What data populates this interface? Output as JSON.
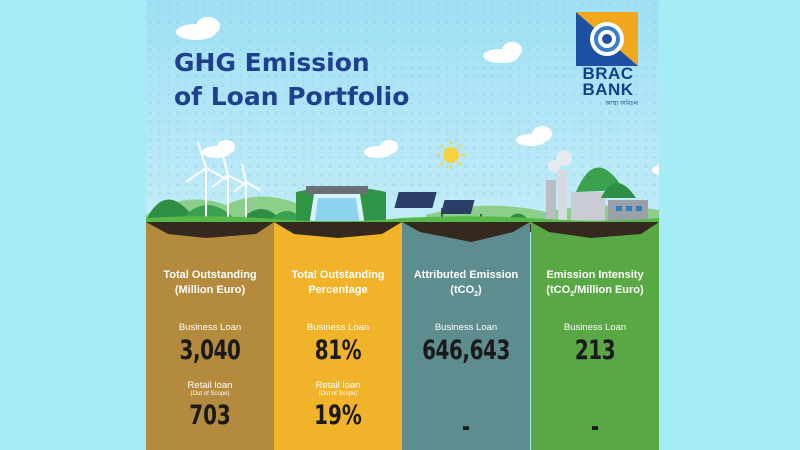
{
  "title": {
    "line1": "GHG Emission",
    "line2": "of Loan Portfolio"
  },
  "logo": {
    "line1": "BRAC",
    "line2": "BANK",
    "tagline": "আস্থা অবিচল"
  },
  "colors": {
    "title": "#1f3f8f",
    "panel1": "#b48a3c",
    "panel2": "#f0b329",
    "panel3": "#5e8d90",
    "panel4": "#5aa845"
  },
  "panels": [
    {
      "header_line1": "Total Outstanding",
      "header_line2": "(Million Euro)",
      "business_label": "Business Loan",
      "business_value": "3,040",
      "retail_label": "Retail loan",
      "retail_note": "(Out of Scope)",
      "retail_value": "703"
    },
    {
      "header_line1": "Total Outstanding",
      "header_line2": "Percentage",
      "business_label": "Business Loan",
      "business_value": "81%",
      "retail_label": "Retail loan",
      "retail_note": "(Out of Scope)",
      "retail_value": "19%"
    },
    {
      "header_line1": "Attributed Emission",
      "header_line2": "(tCO",
      "header_sub": "2",
      "header_tail": ")",
      "business_label": "Business Loan",
      "business_value": "646,643",
      "retail_value": "-"
    },
    {
      "header_line1": "Emission Intensity",
      "header_line2": "(tCO",
      "header_sub": "2",
      "header_tail": "/Million Euro)",
      "business_label": "Business Loan",
      "business_value": "213",
      "retail_value": "-"
    }
  ]
}
